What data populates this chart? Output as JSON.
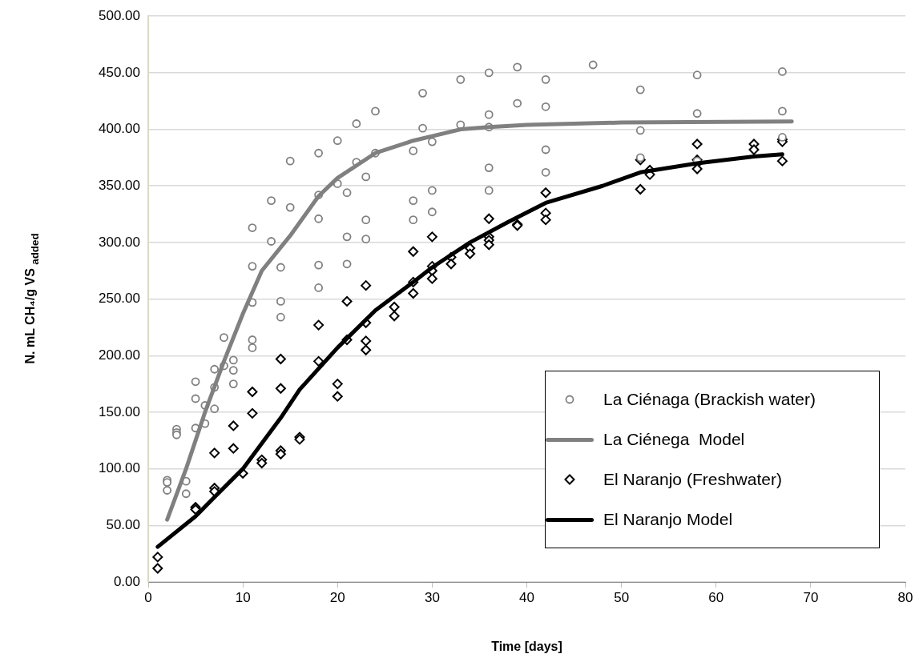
{
  "chart_data": {
    "type": "scatter",
    "xlabel": "Time [days]",
    "ylabel": "N. mL CH₄/g VS $_{added}$",
    "xlim": [
      0,
      80
    ],
    "xticks": [
      0,
      10,
      20,
      30,
      40,
      50,
      60,
      70,
      80
    ],
    "ylim": [
      0,
      500
    ],
    "yticks": [
      {
        "value": 0,
        "label": "0.00"
      },
      {
        "value": 50,
        "label": "50.00"
      },
      {
        "value": 100,
        "label": "100.00"
      },
      {
        "value": 150,
        "label": "150.00"
      },
      {
        "value": 200,
        "label": "200.00"
      },
      {
        "value": 250,
        "label": "250.00"
      },
      {
        "value": 300,
        "label": "300.00"
      },
      {
        "value": 350,
        "label": "350.00"
      },
      {
        "value": 400,
        "label": "400.00"
      },
      {
        "value": 450,
        "label": "450.00"
      },
      {
        "value": 500,
        "label": "500.00"
      }
    ],
    "grid": "y",
    "legend": "bottom right",
    "series": [
      {
        "name": "La Ciénaga (Brackish water)",
        "type": "scatter",
        "marker": "circle",
        "color": "#808080",
        "x": [
          2,
          2,
          2,
          3,
          3,
          3,
          4,
          4,
          5,
          5,
          5,
          6,
          6,
          7,
          7,
          7,
          8,
          8,
          9,
          9,
          9,
          11,
          11,
          11,
          11,
          11,
          13,
          13,
          14,
          14,
          14,
          15,
          15,
          18,
          18,
          18,
          18,
          18,
          20,
          20,
          21,
          21,
          21,
          22,
          22,
          23,
          23,
          23,
          24,
          24,
          28,
          28,
          28,
          29,
          29,
          30,
          30,
          30,
          33,
          33,
          36,
          36,
          36,
          36,
          36,
          39,
          39,
          42,
          42,
          42,
          42,
          47,
          52,
          52,
          52,
          58,
          58,
          58,
          67,
          67,
          67
        ],
        "values": [
          90,
          88,
          81,
          135,
          132,
          130,
          89,
          78,
          177,
          162,
          136,
          156,
          140,
          188,
          172,
          153,
          216,
          191,
          196,
          187,
          175,
          313,
          279,
          247,
          214,
          207,
          337,
          301,
          278,
          248,
          234,
          372,
          331,
          379,
          342,
          321,
          280,
          260,
          390,
          352,
          344,
          305,
          281,
          405,
          371,
          358,
          320,
          303,
          416,
          379,
          381,
          337,
          320,
          432,
          401,
          389,
          346,
          327,
          444,
          404,
          450,
          413,
          402,
          366,
          346,
          455,
          423,
          444,
          420,
          382,
          362,
          457,
          435,
          399,
          375,
          448,
          414,
          372,
          451,
          416,
          393
        ]
      },
      {
        "name": "La Ciénega  Model",
        "type": "line",
        "marker": "none",
        "color": "#808080",
        "x": [
          2,
          4,
          6,
          8,
          10,
          12,
          15,
          18,
          20,
          24,
          28,
          33,
          36,
          40,
          50,
          68
        ],
        "values": [
          55,
          100,
          150,
          195,
          237,
          275,
          306,
          341,
          357,
          379,
          390,
          400,
          402,
          404,
          406,
          407
        ]
      },
      {
        "name": "El Naranjo (Freshwater)",
        "type": "scatter",
        "marker": "diamond",
        "color": "#000000",
        "x": [
          1,
          1,
          5,
          5,
          7,
          7,
          7,
          9,
          9,
          10,
          11,
          11,
          12,
          12,
          14,
          14,
          14,
          14,
          16,
          16,
          18,
          18,
          20,
          20,
          21,
          21,
          23,
          23,
          23,
          23,
          26,
          26,
          28,
          28,
          28,
          30,
          30,
          30,
          30,
          32,
          32,
          34,
          34,
          36,
          36,
          36,
          36,
          39,
          39,
          42,
          42,
          42,
          52,
          52,
          53,
          53,
          58,
          58,
          58,
          58,
          64,
          64,
          67,
          67,
          67
        ],
        "values": [
          22,
          12,
          66,
          64,
          114,
          83,
          80,
          138,
          118,
          96,
          168,
          149,
          108,
          105,
          197,
          171,
          116,
          113,
          128,
          126,
          227,
          195,
          175,
          164,
          248,
          214,
          262,
          229,
          213,
          205,
          243,
          235,
          292,
          265,
          255,
          305,
          279,
          275,
          268,
          287,
          281,
          295,
          290,
          321,
          305,
          302,
          298,
          316,
          315,
          344,
          326,
          320,
          373,
          347,
          364,
          360,
          387,
          373,
          370,
          365,
          387,
          382,
          391,
          389,
          372
        ]
      },
      {
        "name": "El Naranjo Model",
        "type": "line",
        "marker": "none",
        "color": "#000000",
        "x": [
          1,
          5,
          7,
          10,
          14,
          16,
          20,
          24,
          28,
          30,
          34,
          38,
          42,
          48,
          52,
          58,
          64,
          67
        ],
        "values": [
          31,
          58,
          75,
          100,
          145,
          170,
          207,
          240,
          265,
          278,
          300,
          318,
          335,
          350,
          362,
          370,
          376,
          378
        ]
      }
    ]
  }
}
